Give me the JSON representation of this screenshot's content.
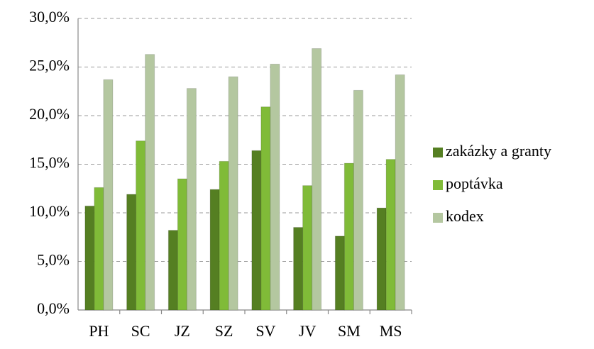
{
  "chart_data": {
    "type": "bar",
    "categories": [
      "PH",
      "SC",
      "JZ",
      "SZ",
      "SV",
      "JV",
      "SM",
      "MS"
    ],
    "series": [
      {
        "name": "zakázky a granty",
        "color": "#557f22",
        "values": [
          10.7,
          11.9,
          8.2,
          12.4,
          16.4,
          8.5,
          7.6,
          10.5
        ]
      },
      {
        "name": "poptávka",
        "color": "#80bb38",
        "values": [
          12.6,
          17.4,
          13.5,
          15.3,
          20.9,
          12.8,
          15.1,
          15.5
        ]
      },
      {
        "name": "kodex",
        "color": "#b4c7a0",
        "values": [
          23.7,
          26.3,
          22.8,
          24.0,
          25.3,
          26.9,
          22.6,
          24.2
        ]
      }
    ],
    "ylim": [
      0,
      30
    ],
    "yticks": [
      {
        "value": 0,
        "label": "0,0%"
      },
      {
        "value": 5,
        "label": "5,0%"
      },
      {
        "value": 10,
        "label": "10,0%"
      },
      {
        "value": 15,
        "label": "15,0%"
      },
      {
        "value": 20,
        "label": "20,0%"
      },
      {
        "value": 25,
        "label": "25,0%"
      },
      {
        "value": 30,
        "label": "30,0%"
      }
    ],
    "grid": true,
    "legend": "right"
  }
}
